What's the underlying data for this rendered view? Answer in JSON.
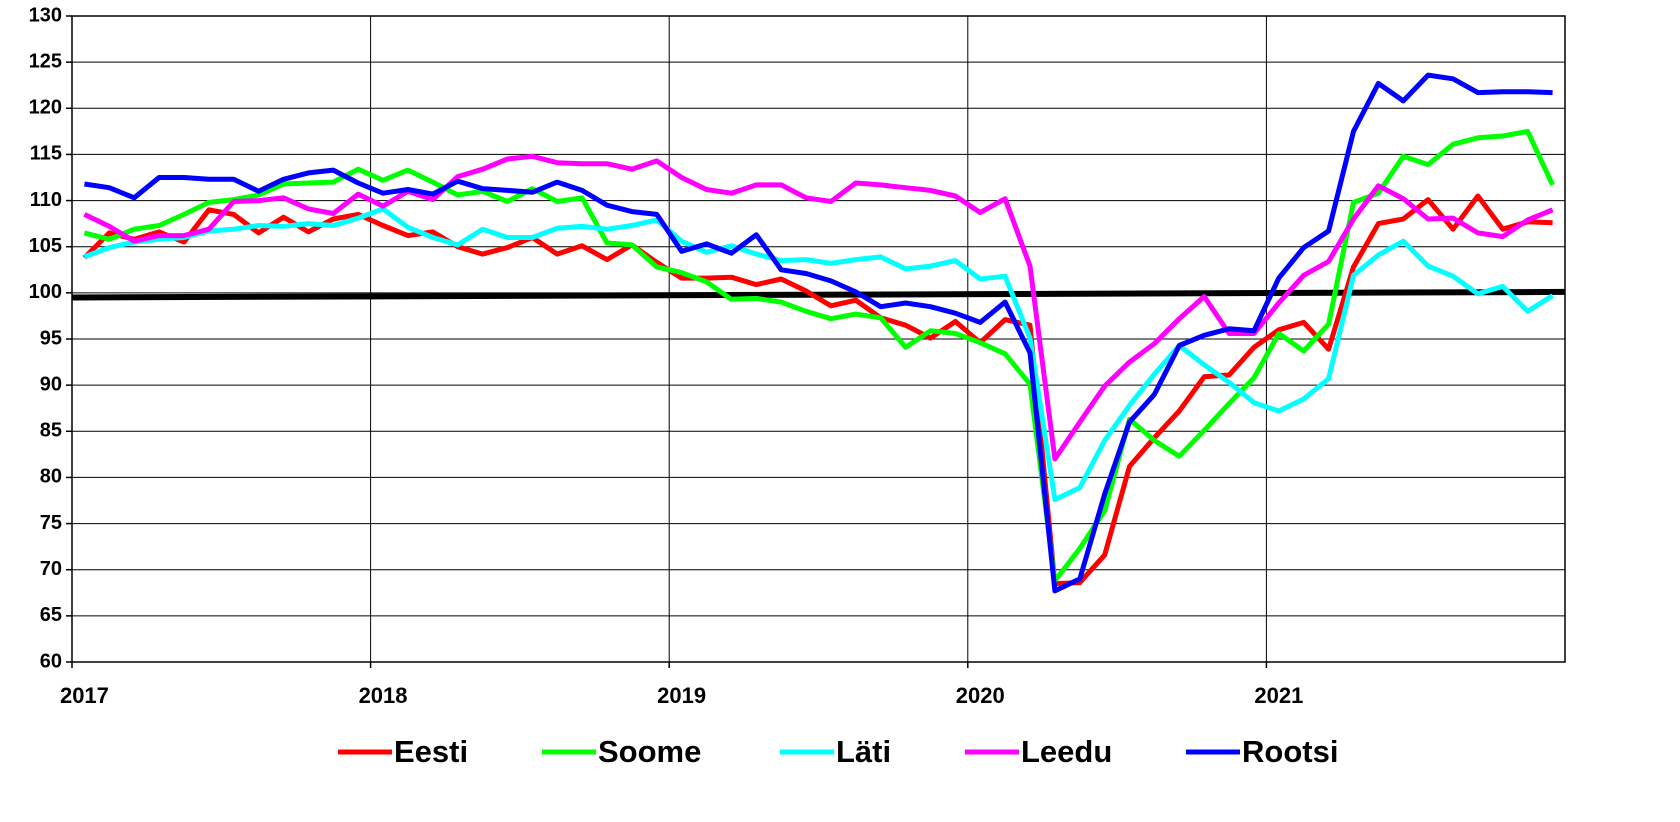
{
  "chart_data": {
    "type": "line",
    "categories": [
      "2017",
      null,
      null,
      null,
      null,
      null,
      null,
      null,
      null,
      null,
      null,
      null,
      "2018",
      null,
      null,
      null,
      null,
      null,
      null,
      null,
      null,
      null,
      null,
      null,
      "2019",
      null,
      null,
      null,
      null,
      null,
      null,
      null,
      null,
      null,
      null,
      null,
      "2020",
      null,
      null,
      null,
      null,
      null,
      null,
      null,
      null,
      null,
      null,
      null,
      "2021",
      null,
      null,
      null,
      null,
      null,
      null,
      null,
      null,
      null,
      null,
      null
    ],
    "series": [
      {
        "name": "Eesti",
        "color": "#ff0000",
        "values": [
          103.8,
          106.5,
          105.8,
          106.6,
          105.5,
          109,
          108.5,
          106.5,
          108.2,
          106.6,
          108,
          108.5,
          107.3,
          106.2,
          106.6,
          105.0,
          104.2,
          104.9,
          106,
          104.2,
          105.1,
          103.6,
          105.2,
          103.3,
          101.6,
          101.6,
          101.7,
          100.9,
          101.5,
          100.2,
          98.6,
          99.2,
          97.3,
          96.5,
          95.1,
          96.9,
          94.6,
          97.1,
          96.5,
          68.5,
          68.6,
          71.6,
          81.2,
          84.3,
          87.2,
          90.9,
          91.1,
          94.1,
          96.0,
          96.8,
          93.9,
          102.8,
          107.5,
          108,
          110.1,
          106.9,
          110.5,
          106.9,
          107.7,
          107.6
        ]
      },
      {
        "name": "Soome",
        "color": "#00ff00",
        "values": [
          106.5,
          105.8,
          106.9,
          107.3,
          108.5,
          109.8,
          110.1,
          110.6,
          111.8,
          111.9,
          112.0,
          113.4,
          112.2,
          113.3,
          112.0,
          110.6,
          111.0,
          109.9,
          111.3,
          109.9,
          110.3,
          105.4,
          105.2,
          102.8,
          102.2,
          101.2,
          99.3,
          99.4,
          99.0,
          98.0,
          97.2,
          97.7,
          97.3,
          94.1,
          95.9,
          95.6,
          94.6,
          93.4,
          90.1,
          68.8,
          72.3,
          76.4,
          86.3,
          84.0,
          82.3,
          85.1,
          88.0,
          90.8,
          95.6,
          93.7,
          96.6,
          109.8,
          110.8,
          114.8,
          113.9,
          116.1,
          116.8,
          117.0,
          117.5,
          111.7
        ]
      },
      {
        "name": "Läti",
        "color": "#00ffff",
        "values": [
          103.9,
          104.9,
          105.5,
          105.8,
          106,
          106.7,
          106.9,
          107.3,
          107.2,
          107.5,
          107.3,
          108.1,
          109.1,
          107.1,
          106,
          105.2,
          106.9,
          106.0,
          106.0,
          107,
          107.2,
          106.9,
          107.3,
          107.9,
          105.6,
          104.4,
          105.1,
          104.2,
          103.5,
          103.6,
          103.2,
          103.6,
          103.9,
          102.6,
          102.9,
          103.5,
          101.5,
          101.8,
          95.1,
          77.6,
          78.9,
          84.0,
          87.8,
          91.2,
          94.3,
          92.2,
          90.3,
          88.1,
          87.2,
          88.5,
          90.7,
          101.9,
          104.1,
          105.6,
          102.9,
          101.8,
          99.9,
          100.7,
          98.0,
          99.7
        ]
      },
      {
        "name": "Leedu",
        "color": "#ff00ff",
        "values": [
          108.5,
          107.2,
          105.6,
          106.2,
          106.2,
          106.9,
          109.9,
          110.0,
          110.3,
          109.1,
          108.6,
          110.7,
          109.4,
          111.0,
          110.1,
          112.6,
          113.4,
          114.5,
          114.8,
          114.1,
          114.0,
          114.0,
          113.4,
          114.3,
          112.5,
          111.2,
          110.8,
          111.7,
          111.7,
          110.3,
          109.9,
          111.9,
          111.7,
          111.4,
          111.1,
          110.5,
          108.7,
          110.2,
          102.9,
          82.0,
          86.0,
          89.9,
          92.5,
          94.5,
          97.2,
          99.6,
          95.6,
          95.6,
          98.9,
          101.9,
          103.4,
          108.0,
          111.6,
          110.2,
          108.0,
          108.1,
          106.5,
          106.1,
          107.9,
          109.0
        ]
      },
      {
        "name": "Rootsi",
        "color": "#0000ff",
        "values": [
          111.8,
          111.4,
          110.3,
          112.5,
          112.5,
          112.3,
          112.3,
          111.0,
          112.3,
          113.0,
          113.3,
          111.9,
          110.8,
          111.2,
          110.7,
          112.1,
          111.3,
          111.1,
          110.9,
          112.0,
          111.1,
          109.5,
          108.8,
          108.5,
          104.5,
          105.3,
          104.3,
          106.3,
          102.5,
          102.1,
          101.3,
          100.1,
          98.5,
          98.9,
          98.5,
          97.8,
          96.8,
          99.0,
          93.5,
          67.7,
          69.0,
          78.2,
          86.0,
          89.0,
          94.3,
          95.4,
          96.1,
          95.9,
          101.6,
          104.9,
          106.7,
          117.5,
          122.7,
          120.8,
          123.6,
          123.2,
          121.7,
          121.8,
          121.8,
          121.7
        ]
      }
    ],
    "reference_line": {
      "values": [
        99.5,
        100.1
      ],
      "color": "#000000"
    },
    "ylim": [
      60,
      130
    ],
    "yticks": [
      60,
      65,
      70,
      75,
      80,
      85,
      90,
      95,
      100,
      105,
      110,
      115,
      120,
      125,
      130
    ],
    "grid": true,
    "legend": "bottom"
  }
}
